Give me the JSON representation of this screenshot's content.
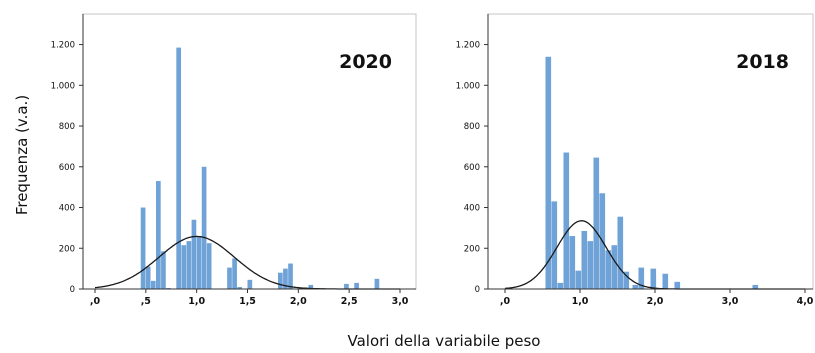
{
  "figure": {
    "ylabel": "Frequenza (v.a.)",
    "xlabel": "Valori della variabile peso"
  },
  "colors": {
    "bar": "#6fa2d6",
    "curve": "#1a1a1a",
    "axis": "#333333",
    "frame": "#c4c4c4",
    "text": "#111111"
  },
  "chart_data": [
    {
      "type": "bar",
      "title": "2020",
      "xlim": [
        0,
        3.0
      ],
      "ylim": [
        0,
        1350
      ],
      "yticks": [
        0,
        200,
        400,
        600,
        800,
        1000,
        1200
      ],
      "yticklabels": [
        "0",
        "200",
        "400",
        "600",
        "800",
        "1.000",
        "1.200"
      ],
      "xticks": [
        0,
        0.5,
        1.0,
        1.5,
        2.0,
        2.5,
        3.0
      ],
      "xticklabels": [
        ",0",
        ",5",
        "1,0",
        "1,5",
        "2,0",
        "2,5",
        "3,0"
      ],
      "bin_width": 0.05,
      "bins": [
        {
          "x": 0.475,
          "y": 400
        },
        {
          "x": 0.525,
          "y": 110
        },
        {
          "x": 0.575,
          "y": 40
        },
        {
          "x": 0.625,
          "y": 530
        },
        {
          "x": 0.675,
          "y": 185
        },
        {
          "x": 0.725,
          "y": 5
        },
        {
          "x": 0.825,
          "y": 1185
        },
        {
          "x": 0.875,
          "y": 215
        },
        {
          "x": 0.925,
          "y": 235
        },
        {
          "x": 0.975,
          "y": 340
        },
        {
          "x": 1.025,
          "y": 255
        },
        {
          "x": 1.075,
          "y": 600
        },
        {
          "x": 1.125,
          "y": 225
        },
        {
          "x": 1.325,
          "y": 105
        },
        {
          "x": 1.375,
          "y": 150
        },
        {
          "x": 1.425,
          "y": 10
        },
        {
          "x": 1.525,
          "y": 45
        },
        {
          "x": 1.825,
          "y": 80
        },
        {
          "x": 1.875,
          "y": 100
        },
        {
          "x": 1.925,
          "y": 125
        },
        {
          "x": 2.125,
          "y": 20
        },
        {
          "x": 2.475,
          "y": 25
        },
        {
          "x": 2.575,
          "y": 30
        },
        {
          "x": 2.775,
          "y": 50
        }
      ],
      "curve": {
        "type": "normal",
        "mean": 1.0,
        "sd": 0.37,
        "peak": 258
      }
    },
    {
      "type": "bar",
      "title": "2018",
      "xlim": [
        0,
        4.0
      ],
      "ylim": [
        0,
        1350
      ],
      "yticks": [
        0,
        200,
        400,
        600,
        800,
        1000,
        1200
      ],
      "yticklabels": [
        "0",
        "200",
        "400",
        "600",
        "800",
        "1.000",
        "1.200"
      ],
      "xticks": [
        0,
        1.0,
        2.0,
        3.0,
        4.0
      ],
      "xticklabels": [
        ",0",
        "1,0",
        "2,0",
        "3,0",
        "4,0"
      ],
      "bin_width": 0.08,
      "bins": [
        {
          "x": 0.58,
          "y": 1140
        },
        {
          "x": 0.66,
          "y": 430
        },
        {
          "x": 0.74,
          "y": 30
        },
        {
          "x": 0.82,
          "y": 670
        },
        {
          "x": 0.9,
          "y": 260
        },
        {
          "x": 0.98,
          "y": 90
        },
        {
          "x": 1.06,
          "y": 285
        },
        {
          "x": 1.14,
          "y": 235
        },
        {
          "x": 1.22,
          "y": 645
        },
        {
          "x": 1.3,
          "y": 470
        },
        {
          "x": 1.38,
          "y": 190
        },
        {
          "x": 1.46,
          "y": 215
        },
        {
          "x": 1.54,
          "y": 355
        },
        {
          "x": 1.62,
          "y": 85
        },
        {
          "x": 1.74,
          "y": 20
        },
        {
          "x": 1.82,
          "y": 105
        },
        {
          "x": 1.98,
          "y": 100
        },
        {
          "x": 2.14,
          "y": 75
        },
        {
          "x": 2.3,
          "y": 35
        },
        {
          "x": 3.34,
          "y": 20
        }
      ],
      "curve": {
        "type": "normal",
        "mean": 1.02,
        "sd": 0.33,
        "peak": 335
      }
    }
  ]
}
